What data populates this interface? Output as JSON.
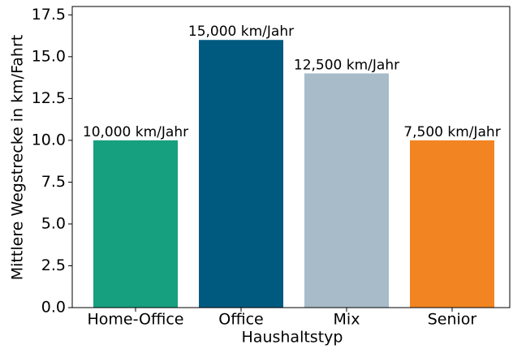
{
  "chart_data": {
    "type": "bar",
    "xlabel": "Haushaltstyp",
    "ylabel": "Mittlere Wegstrecke in km/Fahrt",
    "categories": [
      "Home-Office",
      "Office",
      "Mix",
      "Senior"
    ],
    "values": [
      10,
      16,
      14,
      10
    ],
    "colors": [
      "#17a07f",
      "#005a80",
      "#a7bcc8",
      "#f28522"
    ],
    "annotations": [
      "10,000 km/Jahr",
      "15,000 km/Jahr",
      "12,500 km/Jahr",
      "7,500 km/Jahr"
    ],
    "ylim": [
      0,
      18
    ],
    "yticks": [
      {
        "value": 0,
        "label": "0.0"
      },
      2.5,
      {
        "value": 5,
        "label": "5.0"
      },
      7.5,
      {
        "value": 10,
        "label": "10.0"
      },
      12.5,
      {
        "value": 15,
        "label": "15.0"
      },
      17.5
    ],
    "grid": false
  }
}
